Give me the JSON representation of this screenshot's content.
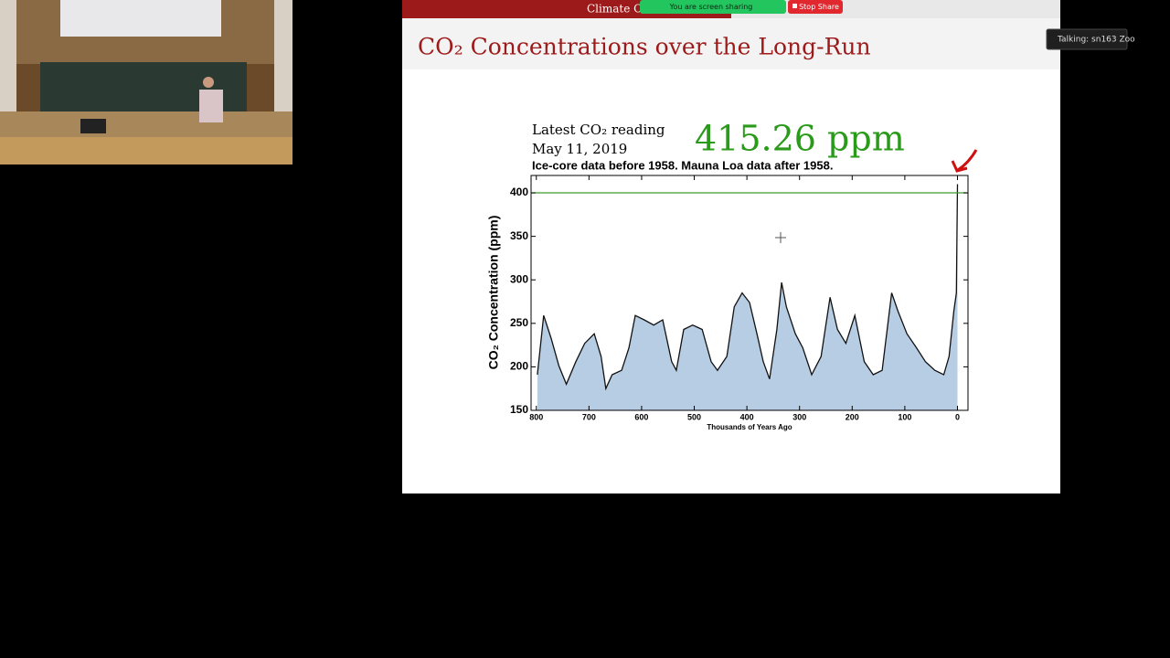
{
  "zoom": {
    "slide_header": "Climate C",
    "sharing_notice": "You are screen sharing",
    "stop_share": "Stop Share",
    "talking": "Talking: sn163 Zoo"
  },
  "slide": {
    "title": "CO₂ Concentrations over the Long-Run"
  },
  "chart_data": {
    "type": "area",
    "latest_label": "Latest CO₂ reading",
    "latest_date": "May 11, 2019",
    "latest_value": "415.26 ppm",
    "subtitle": "Ice-core data before 1958. Mauna Loa data after 1958.",
    "y_label": "CO₂ Concentration (ppm)",
    "x_label": "Thousands of Years Ago",
    "x": [
      798,
      786,
      772,
      757,
      743,
      725,
      708,
      690,
      677,
      668,
      656,
      638,
      624,
      612,
      595,
      577,
      560,
      543,
      534,
      520,
      503,
      485,
      468,
      456,
      438,
      424,
      409,
      395,
      381,
      369,
      357,
      343,
      334,
      325,
      308,
      294,
      277,
      259,
      242,
      228,
      212,
      195,
      177,
      160,
      143,
      125,
      113,
      96,
      78,
      61,
      43,
      26,
      16,
      7,
      2,
      0
    ],
    "values": [
      191,
      259,
      233,
      201,
      180,
      206,
      227,
      238,
      212,
      175,
      191,
      196,
      222,
      259,
      254,
      248,
      254,
      206,
      196,
      243,
      248,
      243,
      206,
      196,
      212,
      269,
      285,
      274,
      238,
      206,
      186,
      243,
      297,
      269,
      238,
      222,
      191,
      212,
      280,
      243,
      227,
      259,
      206,
      191,
      196,
      285,
      264,
      238,
      222,
      206,
      196,
      191,
      212,
      264,
      285,
      410
    ],
    "color": "#b7cde3",
    "line_color": "#111111",
    "hline": 400,
    "hline_color": "#3a9a2a",
    "xlim": [
      810,
      -20
    ],
    "xticks": [
      800,
      700,
      600,
      500,
      400,
      300,
      200,
      100,
      0
    ],
    "ylim": [
      150,
      420
    ],
    "yticks": [
      150,
      200,
      250,
      300,
      350,
      400
    ]
  }
}
